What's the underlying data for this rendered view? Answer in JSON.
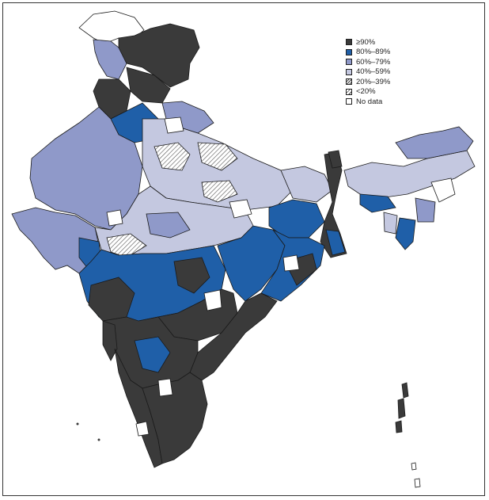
{
  "legend": {
    "items": [
      {
        "label": "≥90%",
        "color": "#3a3a3a",
        "pattern": "solid"
      },
      {
        "label": "80%–89%",
        "color": "#1f5fa8",
        "pattern": "solid"
      },
      {
        "label": "60%–79%",
        "color": "#8f99c9",
        "pattern": "solid"
      },
      {
        "label": "40%–59%",
        "color": "#c4c8e0",
        "pattern": "solid"
      },
      {
        "label": "20%–39%",
        "color": "#ffffff",
        "pattern": "hatch-dense"
      },
      {
        "label": "<20%",
        "color": "#ffffff",
        "pattern": "hatch-sparse"
      },
      {
        "label": "No data",
        "color": "#ffffff",
        "pattern": "solid"
      }
    ]
  },
  "colors": {
    "outline": "#1a1a1a",
    "background": "#ffffff"
  }
}
